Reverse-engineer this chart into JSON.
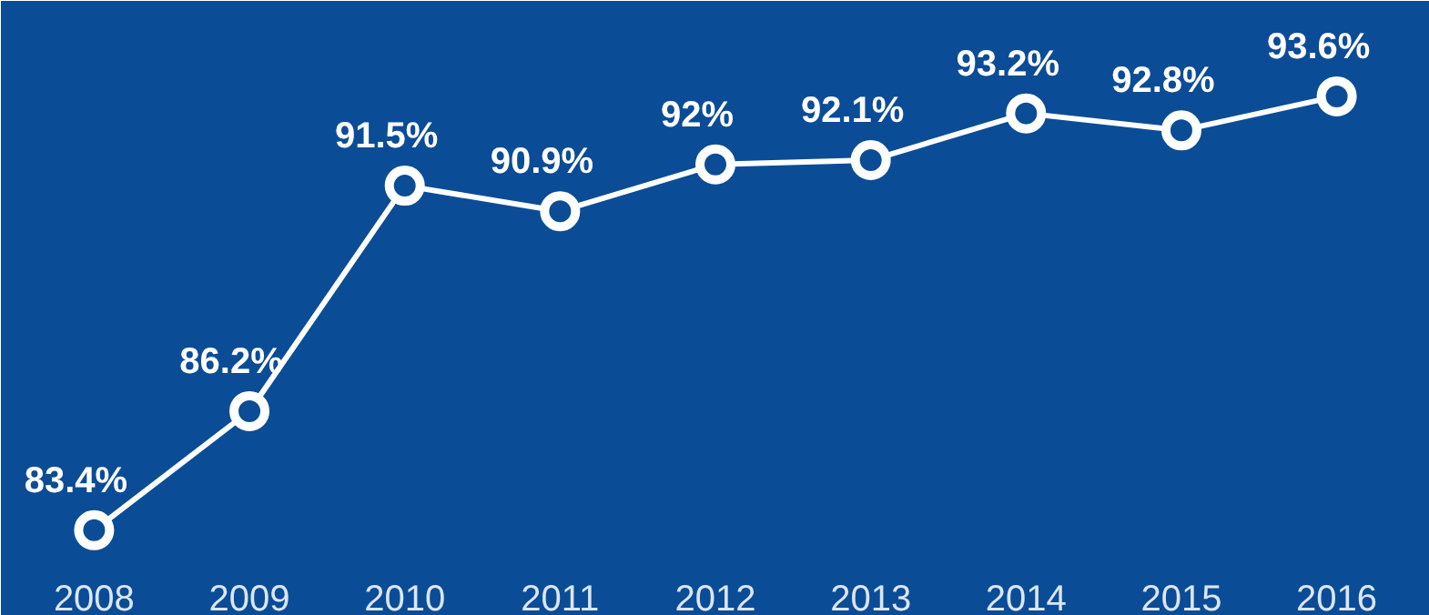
{
  "chart_data": {
    "type": "line",
    "categories": [
      "2008",
      "2009",
      "2010",
      "2011",
      "2012",
      "2013",
      "2014",
      "2015",
      "2016"
    ],
    "series": [
      {
        "color": "#ffffff",
        "values": [
          83.4,
          86.2,
          91.5,
          90.9,
          92,
          92.1,
          93.2,
          92.8,
          93.6
        ],
        "value_labels": [
          "83.4%",
          "86.2%",
          "91.5%",
          "90.9%",
          "92%",
          "92.1%",
          "93.2%",
          "92.8%",
          "93.6%"
        ]
      }
    ],
    "marker": "circle",
    "line_style": "solid",
    "grid": false
  }
}
